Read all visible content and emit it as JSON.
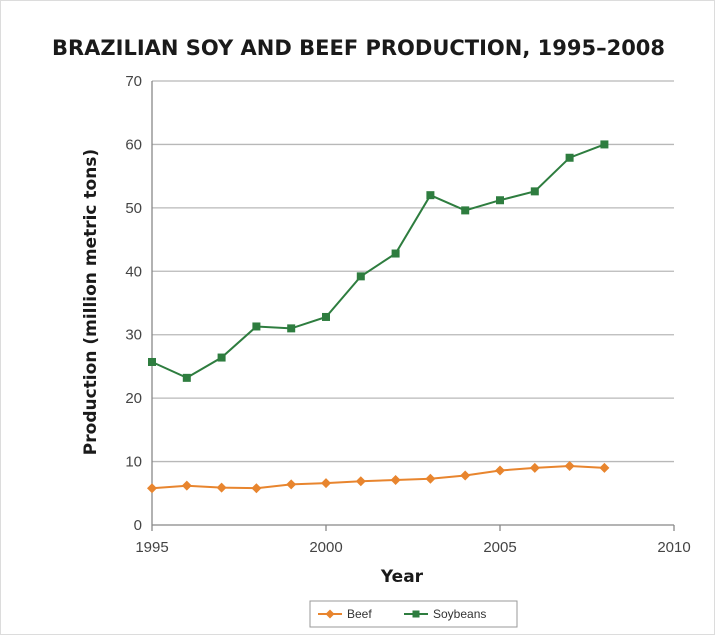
{
  "chart_data": {
    "type": "line",
    "title": "BRAZILIAN SOY AND BEEF PRODUCTION, 1995–2008",
    "xlabel": "Year",
    "ylabel": "Production (million metric tons)",
    "xlim": [
      1995,
      2010
    ],
    "ylim": [
      0,
      70
    ],
    "x_ticks": [
      1995,
      2000,
      2005,
      2010
    ],
    "y_ticks": [
      0,
      10,
      20,
      30,
      40,
      50,
      60,
      70
    ],
    "grid": "horizontal",
    "legend_position": "bottom",
    "x": [
      1995,
      1996,
      1997,
      1998,
      1999,
      2000,
      2001,
      2002,
      2003,
      2004,
      2005,
      2006,
      2007,
      2008
    ],
    "series": [
      {
        "name": "Beef",
        "color": "#e8852e",
        "marker": "diamond",
        "values": [
          5.8,
          6.2,
          5.9,
          5.8,
          6.4,
          6.6,
          6.9,
          7.1,
          7.3,
          7.8,
          8.6,
          9.0,
          9.3,
          9.0
        ]
      },
      {
        "name": "Soybeans",
        "color": "#2e7d3f",
        "marker": "square",
        "values": [
          25.7,
          23.2,
          26.4,
          31.3,
          31.0,
          32.8,
          39.2,
          42.8,
          52.0,
          49.6,
          51.2,
          52.6,
          57.9,
          60.0
        ]
      }
    ]
  }
}
